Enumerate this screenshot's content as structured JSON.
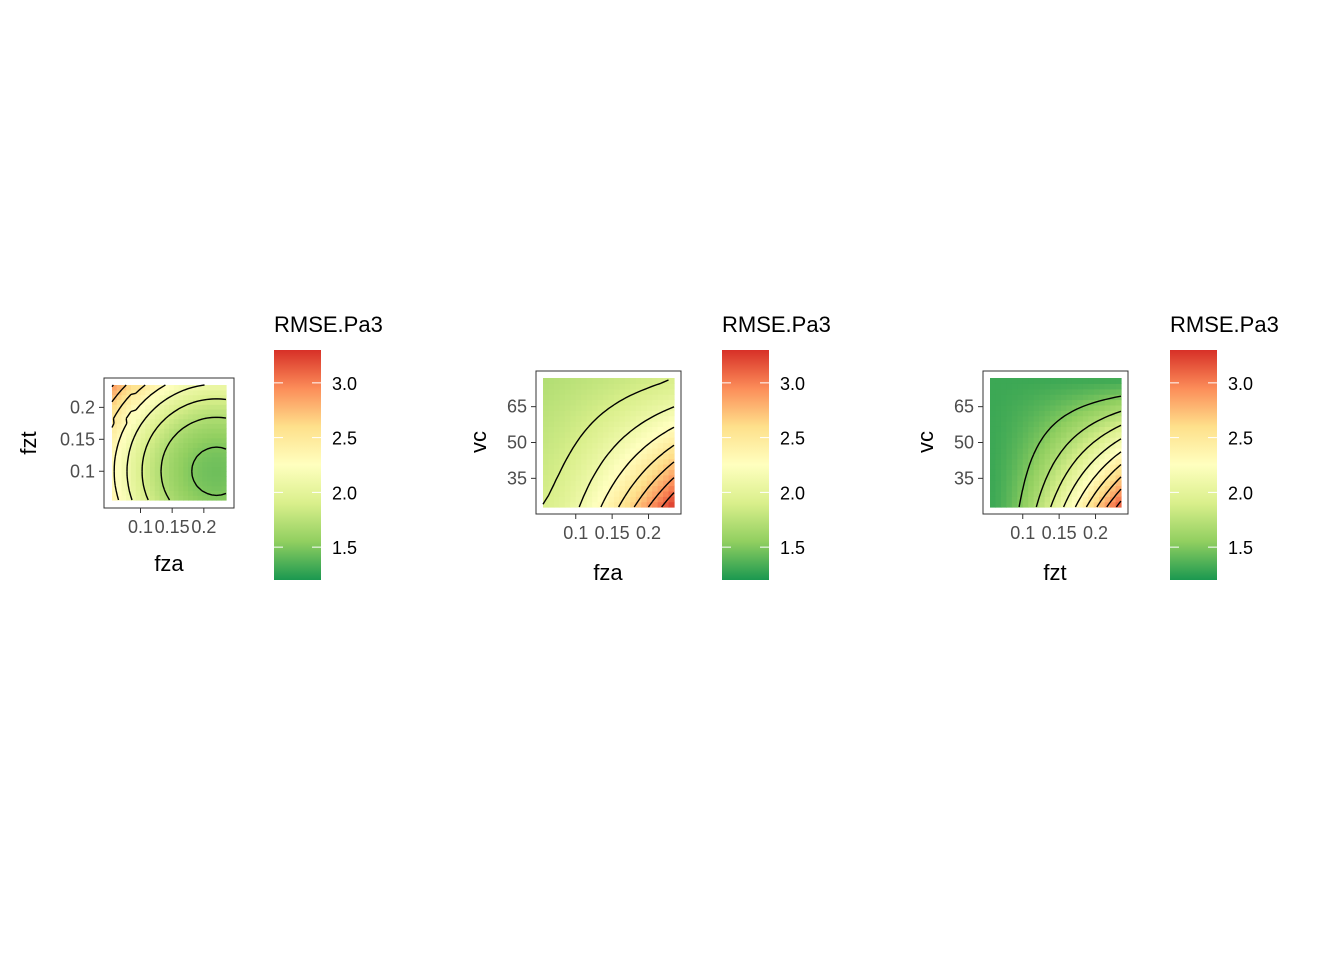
{
  "legend_title": "RMSE.Pa3",
  "legend_ticks": [
    "1.5",
    "2.0",
    "2.5",
    "3.0"
  ],
  "legend_range": [
    1.2,
    3.3
  ],
  "colors": {
    "scale": [
      "#1a9850",
      "#91cf60",
      "#d9ef8b",
      "#ffffbf",
      "#fee08b",
      "#fc8d59",
      "#d73027"
    ],
    "contour": "#000000",
    "panel_border": "#333333"
  },
  "chart_data": [
    {
      "type": "heatmap",
      "xlabel": "fza",
      "ylabel": "fzt",
      "xlim": [
        0.055,
        0.235
      ],
      "ylim": [
        0.055,
        0.235
      ],
      "x_ticks": [
        "0.1",
        "0.15",
        "0.2"
      ],
      "y_ticks": [
        "0.1",
        "0.15",
        "0.2"
      ],
      "fill": "RMSE.Pa3",
      "contours": true,
      "grid": true
    },
    {
      "type": "heatmap",
      "xlabel": "fza",
      "ylabel": "vc",
      "xlim": [
        0.055,
        0.235
      ],
      "ylim": [
        23,
        77
      ],
      "x_ticks": [
        "0.1",
        "0.15",
        "0.2"
      ],
      "y_ticks": [
        "35",
        "50",
        "65"
      ],
      "fill": "RMSE.Pa3",
      "contours": true,
      "grid": true
    },
    {
      "type": "heatmap",
      "xlabel": "fzt",
      "ylabel": "vc",
      "xlim": [
        0.055,
        0.235
      ],
      "ylim": [
        23,
        77
      ],
      "x_ticks": [
        "0.1",
        "0.15",
        "0.2"
      ],
      "y_ticks": [
        "35",
        "50",
        "65"
      ],
      "fill": "RMSE.Pa3",
      "contours": true,
      "grid": true
    }
  ]
}
